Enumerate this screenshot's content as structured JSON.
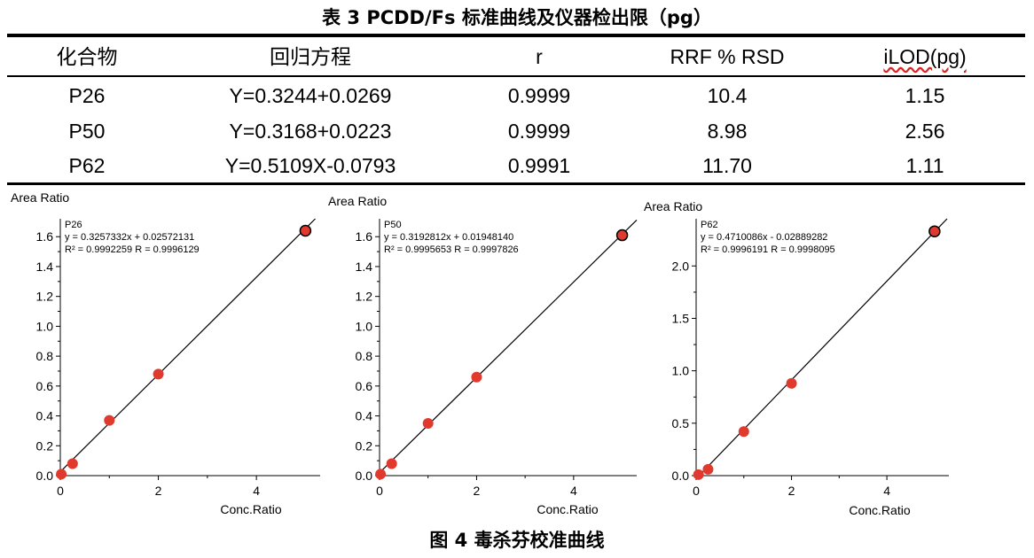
{
  "table": {
    "title": "表 3 PCDD/Fs 标准曲线及仪器检出限（pg）",
    "headers": [
      "化合物",
      "回归方程",
      "r",
      "RRF % RSD",
      "iLOD(pg)"
    ],
    "rows": [
      [
        "P26",
        "Y=0.3244+0.0269",
        "0.9999",
        "10.4",
        "1.15"
      ],
      [
        "P50",
        "Y=0.3168+0.0223",
        "0.9999",
        "8.98",
        "2.56"
      ],
      [
        "P62",
        "Y=0.5109X-0.0793",
        "0.9991",
        "11.70",
        "1.11"
      ]
    ]
  },
  "figure_caption": "图 4 毒杀芬校准曲线",
  "colors": {
    "point": "#e03a2f",
    "line": "#000000"
  },
  "chart_data": [
    {
      "type": "scatter",
      "name": "P26",
      "ylabel": "Area Ratio",
      "xlabel": "Conc.Ratio",
      "equation": "y = 0.3257332x + 0.02572131",
      "stats": "R² = 0.9992259    R = 0.9996129",
      "slope": 0.3257332,
      "intercept": 0.02572131,
      "x": [
        0.02,
        0.25,
        1.0,
        2.0,
        5.0
      ],
      "y": [
        0.01,
        0.08,
        0.37,
        0.68,
        1.64
      ],
      "xlim": [
        0,
        5.3
      ],
      "ylim": [
        0,
        1.72
      ],
      "xticks": [
        0,
        2,
        4
      ],
      "yticks": [
        0.0,
        0.2,
        0.4,
        0.6,
        0.8,
        1.0,
        1.2,
        1.4,
        1.6
      ],
      "ytick_labels": [
        "0.0",
        "0.2",
        "0.4",
        "0.6",
        "0.8",
        "1.0",
        "1.2",
        "1.4",
        "1.6"
      ]
    },
    {
      "type": "scatter",
      "name": "P50",
      "ylabel": "Area Ratio",
      "xlabel": "Conc.Ratio",
      "equation": "y = 0.3192812x + 0.01948140",
      "stats": "R² = 0.9995653    R = 0.9997826",
      "slope": 0.3192812,
      "intercept": 0.0194814,
      "x": [
        0.02,
        0.25,
        1.0,
        2.0,
        5.0
      ],
      "y": [
        0.01,
        0.08,
        0.35,
        0.66,
        1.61
      ],
      "xlim": [
        0,
        5.3
      ],
      "ylim": [
        0,
        1.72
      ],
      "xticks": [
        0,
        2,
        4
      ],
      "yticks": [
        0.0,
        0.2,
        0.4,
        0.6,
        0.8,
        1.0,
        1.2,
        1.4,
        1.6
      ],
      "ytick_labels": [
        "0.0",
        "0.2",
        "0.4",
        "0.6",
        "0.8",
        "1.0",
        "1.2",
        "1.4",
        "1.6"
      ]
    },
    {
      "type": "scatter",
      "name": "P62",
      "ylabel": "Area Ratio",
      "xlabel": "Conc.Ratio",
      "equation": "y = 0.4710086x - 0.02889282",
      "stats": "R² = 0.9996191    R = 0.9998095",
      "slope": 0.4710086,
      "intercept": -0.02889282,
      "x": [
        0.05,
        0.25,
        1.0,
        2.0,
        5.0
      ],
      "y": [
        0.01,
        0.06,
        0.42,
        0.88,
        2.33
      ],
      "xlim": [
        0,
        5.3
      ],
      "ylim": [
        0,
        2.45
      ],
      "xticks": [
        0,
        2,
        4
      ],
      "yticks": [
        0.0,
        0.5,
        1.0,
        1.5,
        2.0
      ],
      "ytick_labels": [
        "0.0",
        "0.5",
        "1.0",
        "1.5",
        "2.0"
      ]
    }
  ]
}
